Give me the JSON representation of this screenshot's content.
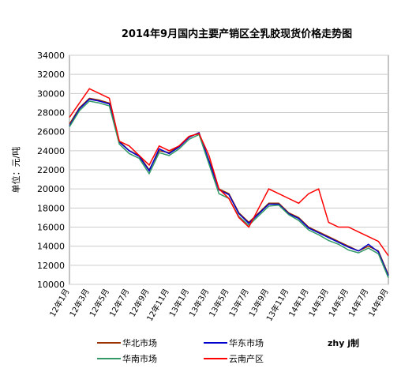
{
  "chart_data": {
    "type": "line",
    "title": "2014年9月国内主要产销区全乳胶现货价格走势图",
    "y_label": "单位：元/吨",
    "note": "zhy j制",
    "categories": [
      "12年1月",
      null,
      "12年3月",
      null,
      "12年5月",
      null,
      "12年7月",
      null,
      "12年9月",
      null,
      "12年11月",
      null,
      "13年1月",
      null,
      "13年3月",
      null,
      "13年5月",
      null,
      "13年7月",
      null,
      "13年9月",
      null,
      "13年11月",
      null,
      "14年1月",
      null,
      "14年3月",
      null,
      "14年5月",
      null,
      "14年7月",
      null,
      "14年9月"
    ],
    "ylim": [
      10000,
      34000
    ],
    "yticks": [
      10000,
      12000,
      14000,
      16000,
      18000,
      20000,
      22000,
      24000,
      26000,
      28000,
      30000,
      32000,
      34000
    ],
    "grid": true,
    "series": [
      {
        "name": "华北市场",
        "color": "#993300",
        "values": [
          26800,
          28500,
          29500,
          29300,
          29000,
          25000,
          24000,
          23500,
          22000,
          24000,
          23800,
          24500,
          25500,
          25800,
          23000,
          20000,
          19500,
          17500,
          16500,
          17500,
          18500,
          18500,
          17500,
          17000,
          16000,
          15500,
          15000,
          14500,
          14000,
          13500,
          14000,
          13500,
          11000
        ]
      },
      {
        "name": "华东市场",
        "color": "#0000cc",
        "values": [
          26600,
          28400,
          29400,
          29200,
          28900,
          24900,
          24000,
          23400,
          21900,
          24200,
          23700,
          24400,
          25400,
          25900,
          22900,
          19900,
          19400,
          17400,
          16400,
          17400,
          18400,
          18400,
          17400,
          16900,
          15900,
          15400,
          14900,
          14400,
          13900,
          13500,
          14200,
          13400,
          10900
        ]
      },
      {
        "name": "华南市场",
        "color": "#339966",
        "values": [
          26500,
          28200,
          29200,
          29000,
          28700,
          24700,
          23700,
          23200,
          21600,
          23800,
          23500,
          24200,
          25200,
          25700,
          22600,
          19500,
          19000,
          17100,
          16200,
          17200,
          18200,
          18300,
          17300,
          16700,
          15700,
          15200,
          14600,
          14200,
          13600,
          13300,
          13800,
          13200,
          10700
        ]
      },
      {
        "name": "云南产区",
        "color": "#ff0000",
        "values": [
          27500,
          29000,
          30500,
          30000,
          29500,
          25000,
          24500,
          23500,
          22500,
          24500,
          24000,
          24500,
          25500,
          25800,
          23500,
          20000,
          19000,
          17000,
          16000,
          18000,
          20000,
          19500,
          19000,
          18500,
          19500,
          20000,
          16500,
          16000,
          16000,
          15500,
          15000,
          14500,
          13000
        ]
      }
    ]
  }
}
